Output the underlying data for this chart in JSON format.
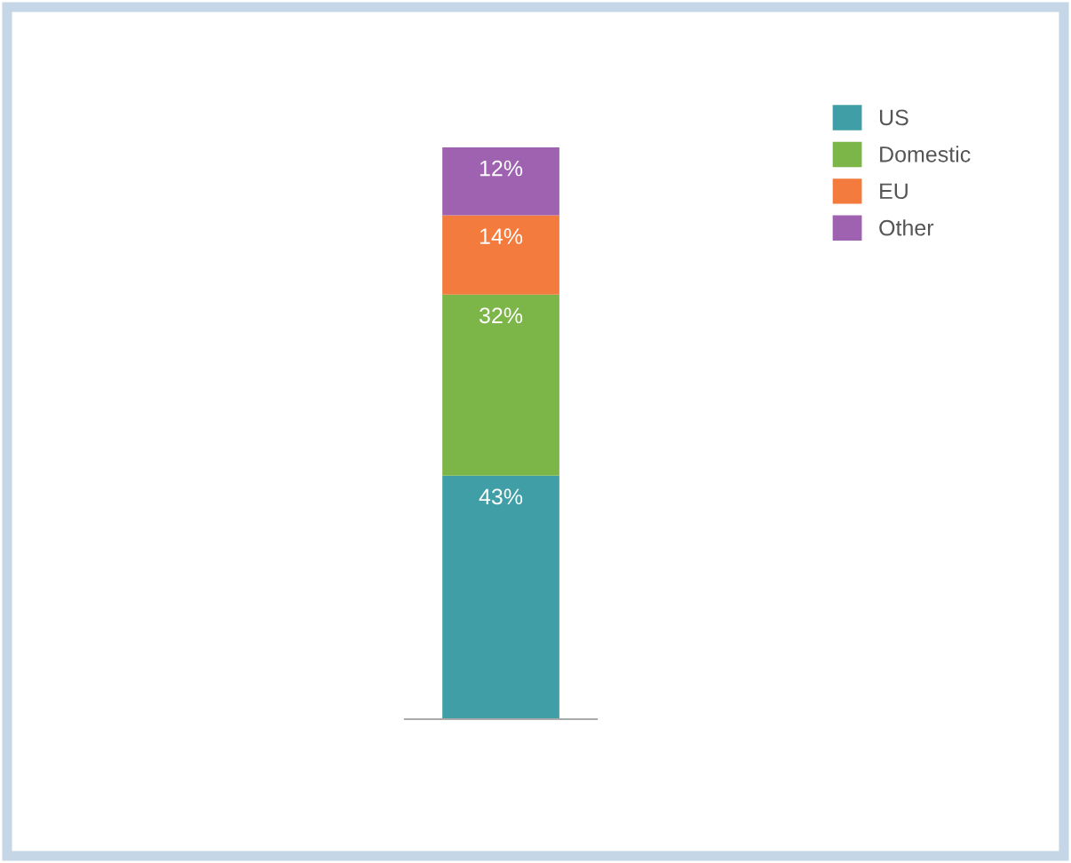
{
  "chart_data": {
    "type": "bar",
    "stacked": true,
    "categories": [
      null
    ],
    "series": [
      {
        "name": "US",
        "color": "#3f9ea6",
        "values": [
          43
        ],
        "value_labels": [
          "43%"
        ]
      },
      {
        "name": "Domestic",
        "color": "#7cb648",
        "values": [
          32
        ],
        "value_labels": [
          "32%"
        ]
      },
      {
        "name": "EU",
        "color": "#f27b3d",
        "values": [
          14
        ],
        "value_labels": [
          "14%"
        ]
      },
      {
        "name": "Other",
        "color": "#9f62b0",
        "values": [
          12
        ],
        "value_labels": [
          "12%"
        ]
      }
    ],
    "legend": "top right",
    "grid": false
  }
}
